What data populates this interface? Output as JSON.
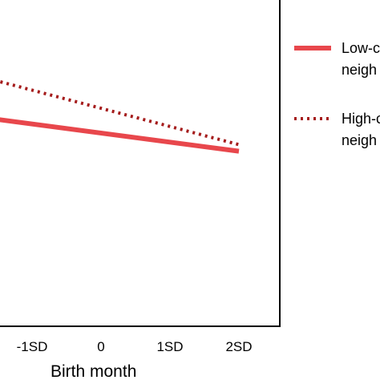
{
  "chart_data": {
    "type": "line",
    "xlabel": "Birth month",
    "ylabel": "",
    "categories": [
      "-1SD",
      "0",
      "1SD",
      "2SD"
    ],
    "x_range": [
      -2,
      2
    ],
    "y_range": [
      0,
      1
    ],
    "grid": false,
    "legend_placement": "right",
    "series": [
      {
        "name": "Low-c",
        "name_line2": "neigh",
        "style": "solid",
        "color": "#e8474c",
        "x": [
          -2,
          2
        ],
        "y": [
          0.64,
          0.53
        ]
      },
      {
        "name": "High-c",
        "name_line2": "neigh",
        "style": "dotted",
        "color": "#a51c1c",
        "x": [
          -2,
          2
        ],
        "y": [
          0.77,
          0.55
        ]
      }
    ]
  }
}
